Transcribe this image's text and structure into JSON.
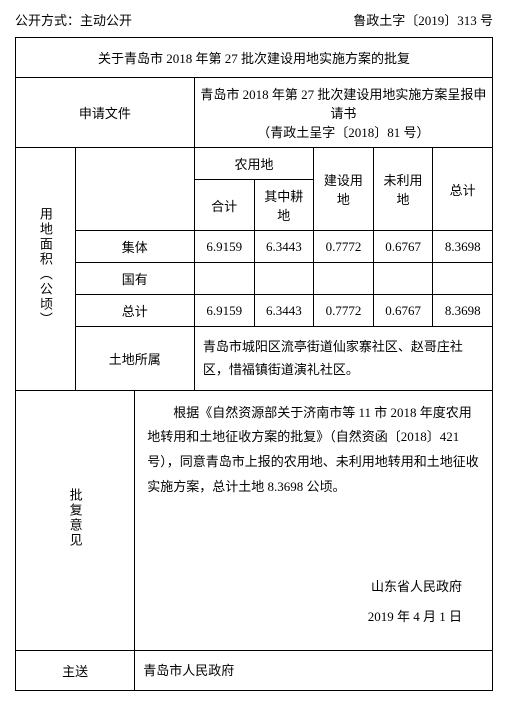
{
  "header": {
    "disclosure_label": "公开方式：",
    "disclosure_value": "主动公开",
    "doc_number": "鲁政土字〔2019〕313 号"
  },
  "title": "关于青岛市 2018 年第 27 批次建设用地实施方案的批复",
  "application": {
    "label": "申请文件",
    "content_line1": "青岛市 2018 年第 27 批次建设用地实施方案呈报申请书",
    "content_line2": "（青政土呈字〔2018〕81 号）"
  },
  "land_area": {
    "label": "用地面积（公顷）",
    "columns": {
      "farmland": "农用地",
      "subtotal": "合计",
      "cultivated": "其中耕地",
      "construction": "建设用地",
      "unused": "未利用地",
      "total": "总计"
    },
    "rows": {
      "collective_label": "集体",
      "state_label": "国有",
      "total_label": "总计",
      "collective": [
        "6.9159",
        "6.3443",
        "0.7772",
        "0.6767",
        "8.3698"
      ],
      "state": [
        "",
        "",
        "",
        "",
        ""
      ],
      "total": [
        "6.9159",
        "6.3443",
        "0.7772",
        "0.6767",
        "8.3698"
      ]
    },
    "location": {
      "label": "土地所属",
      "content": "青岛市城阳区流亭街道仙家寨社区、赵哥庄社区，惜福镇街道演礼社区。"
    }
  },
  "opinion": {
    "label": "批复意见",
    "content": "根据《自然资源部关于济南市等 11 市 2018 年度农用地转用和土地征收方案的批复》（自然资函〔2018〕421 号），同意青岛市上报的农用地、未利用地转用和土地征收实施方案，总计土地 8.3698 公顷。",
    "signature": "山东省人民政府",
    "date": "2019 年 4 月 1 日"
  },
  "cc": {
    "label": "主送",
    "content": "青岛市人民政府"
  }
}
